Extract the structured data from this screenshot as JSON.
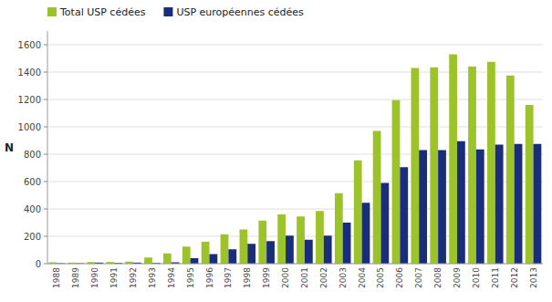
{
  "chart_data": {
    "type": "bar",
    "y_label": "N",
    "categories": [
      "1988",
      "1989",
      "1990",
      "1991",
      "1992",
      "1993",
      "1994",
      "1995",
      "1996",
      "1997",
      "1998",
      "1999",
      "2000",
      "2001",
      "2002",
      "2003",
      "2004",
      "2005",
      "2006",
      "2007",
      "2008",
      "2009",
      "2010",
      "2011",
      "2012",
      "2013"
    ],
    "series": [
      {
        "name": "Total USP cédées",
        "color": "#9dc32a",
        "values": [
          10,
          8,
          12,
          12,
          15,
          45,
          75,
          125,
          160,
          215,
          250,
          315,
          360,
          345,
          385,
          515,
          755,
          970,
          1195,
          1430,
          1435,
          1530,
          1440,
          1475,
          1375,
          1160
        ]
      },
      {
        "name": "USP européennes cédées",
        "color": "#1a2d7a",
        "values": [
          3,
          3,
          8,
          5,
          8,
          5,
          10,
          40,
          70,
          105,
          145,
          165,
          205,
          175,
          205,
          300,
          445,
          590,
          705,
          830,
          830,
          895,
          835,
          870,
          875,
          875
        ]
      }
    ],
    "ylim": [
      0,
      1700
    ],
    "yticks": [
      0,
      200,
      400,
      600,
      800,
      1000,
      1200,
      1400,
      1600
    ],
    "grid": true,
    "legend": "top left"
  }
}
